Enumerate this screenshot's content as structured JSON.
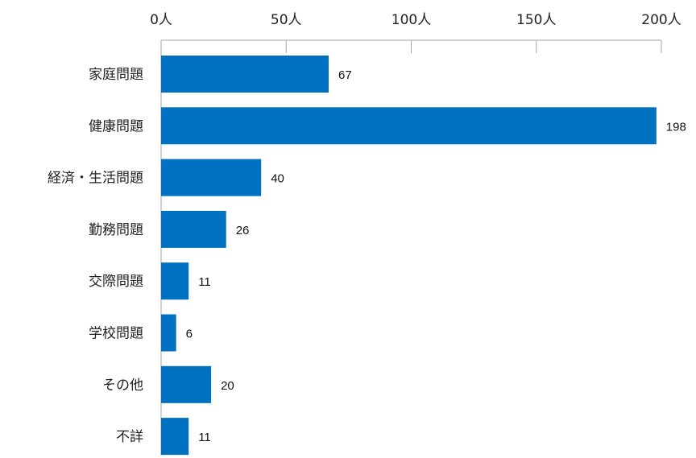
{
  "chart_data": {
    "type": "bar",
    "orientation": "horizontal",
    "categories": [
      "家庭問題",
      "健康問題",
      "経済・生活問題",
      "勤務問題",
      "交際問題",
      "学校問題",
      "その他",
      "不詳"
    ],
    "values": [
      67,
      198,
      40,
      26,
      11,
      6,
      20,
      11
    ],
    "xlim": [
      0,
      200
    ],
    "xticks": [
      0,
      50,
      100,
      150,
      200
    ],
    "tick_labels": [
      "0人",
      "50人",
      "100人",
      "150人",
      "200人"
    ],
    "axis_position": "top",
    "grid": false,
    "legend": "none",
    "bar_color": "#0070c0"
  }
}
